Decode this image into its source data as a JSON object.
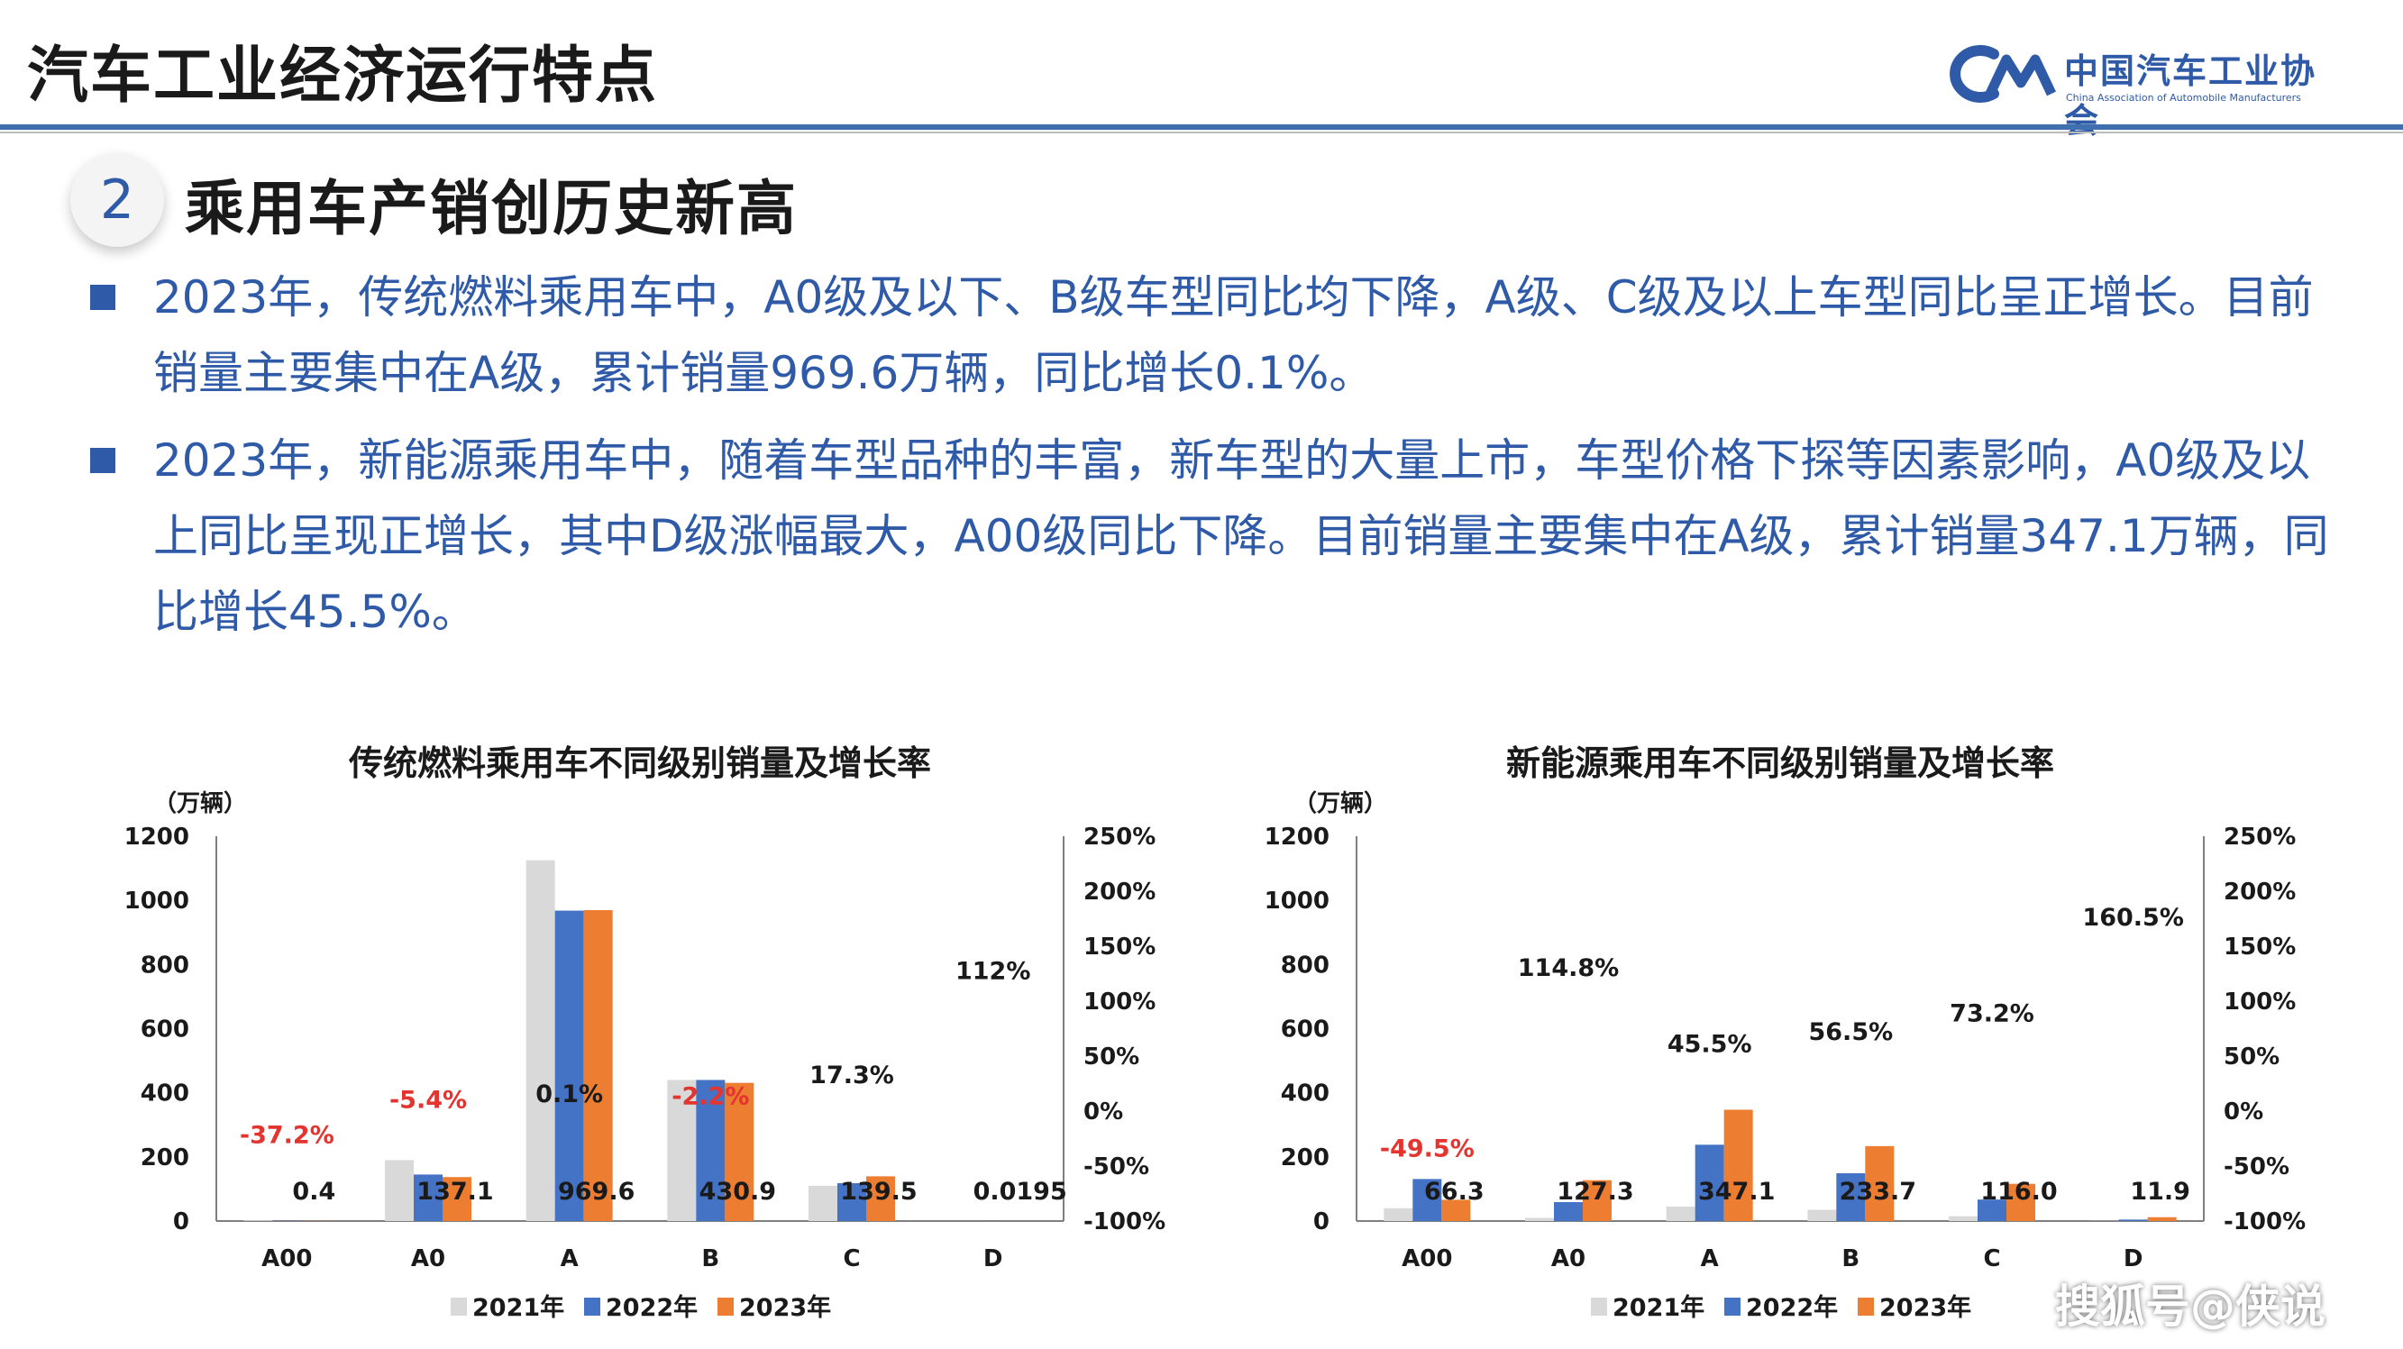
{
  "header": {
    "title": "汽车工业经济运行特点",
    "logo_cn": "中国汽车工业协会",
    "logo_en": "China Association of Automobile Manufacturers"
  },
  "section": {
    "number": "2",
    "title": "乘用车产销创历史新高"
  },
  "bullets": [
    "2023年，传统燃料乘用车中，A0级及以下、B级车型同比均下降，A级、C级及以上车型同比呈正增长。目前销量主要集中在A级，累计销量969.6万辆，同比增长0.1%。",
    "2023年，新能源乘用车中，随着车型品种的丰富，新车型的大量上市，车型价格下探等因素影响，A0级及以上同比呈现正增长，其中D级涨幅最大，A00级同比下降。目前销量主要集中在A级，累计销量347.1万辆，同比增长45.5%。"
  ],
  "colors": {
    "y2021": "#d9d9d9",
    "y2022": "#4472c4",
    "y2023": "#ed7d31",
    "negative": "#e3342f",
    "positive": "#1a1a1a",
    "accent": "#2e5aa8"
  },
  "watermark": "搜狐号@侠说",
  "chart_data": [
    {
      "type": "bar",
      "title": "传统燃料乘用车不同级别销量及增长率",
      "ylabel": "（万辆）",
      "ylim": [
        0,
        1200
      ],
      "yticks": [
        "1200",
        "1000",
        "800",
        "600",
        "400",
        "200",
        "0"
      ],
      "y2lim": [
        -100,
        250
      ],
      "y2ticks": [
        "250%",
        "200%",
        "150%",
        "100%",
        "50%",
        "0%",
        "-50%",
        "-100%"
      ],
      "categories": [
        "A00",
        "A0",
        "A",
        "B",
        "C",
        "D"
      ],
      "series": [
        {
          "name": "2021年",
          "values": [
            2,
            190,
            1125,
            440,
            110,
            0
          ]
        },
        {
          "name": "2022年",
          "values": [
            0.6,
            145,
            968,
            440,
            118,
            0.01
          ]
        },
        {
          "name": "2023年",
          "values": [
            0.4,
            137.1,
            969.6,
            430.9,
            139.5,
            0.0195
          ]
        }
      ],
      "value_labels": [
        "0.4",
        "137.1",
        "969.6",
        "430.9",
        "139.5",
        "0.0195"
      ],
      "growth": [
        -37.2,
        -5.4,
        0.1,
        -2.2,
        17.3,
        112
      ],
      "growth_labels": [
        "-37.2%",
        "-5.4%",
        "0.1%",
        "-2.2%",
        "17.3%",
        "112%"
      ],
      "legend": [
        "2021年",
        "2022年",
        "2023年"
      ],
      "legend_position": "bottom"
    },
    {
      "type": "bar",
      "title": "新能源乘用车不同级别销量及增长率",
      "ylabel": "（万辆）",
      "ylim": [
        0,
        1200
      ],
      "yticks": [
        "1200",
        "1000",
        "800",
        "600",
        "400",
        "200",
        "0"
      ],
      "y2lim": [
        -100,
        250
      ],
      "y2ticks": [
        "250%",
        "200%",
        "150%",
        "100%",
        "50%",
        "0%",
        "-50%",
        "-100%"
      ],
      "categories": [
        "A00",
        "A0",
        "A",
        "B",
        "C",
        "D"
      ],
      "series": [
        {
          "name": "2021年",
          "values": [
            40,
            10,
            45,
            35,
            15,
            0.5
          ]
        },
        {
          "name": "2022年",
          "values": [
            131,
            59,
            238,
            149,
            67,
            4.6
          ]
        },
        {
          "name": "2023年",
          "values": [
            66.3,
            127.3,
            347.1,
            233.7,
            116.0,
            11.9
          ]
        }
      ],
      "value_labels": [
        "66.3",
        "127.3",
        "347.1",
        "233.7",
        "116.0",
        "11.9"
      ],
      "growth": [
        -49.5,
        114.8,
        45.5,
        56.5,
        73.2,
        160.5
      ],
      "growth_labels": [
        "-49.5%",
        "114.8%",
        "45.5%",
        "56.5%",
        "73.2%",
        "160.5%"
      ],
      "legend": [
        "2021年",
        "2022年",
        "2023年"
      ],
      "legend_position": "bottom"
    }
  ]
}
